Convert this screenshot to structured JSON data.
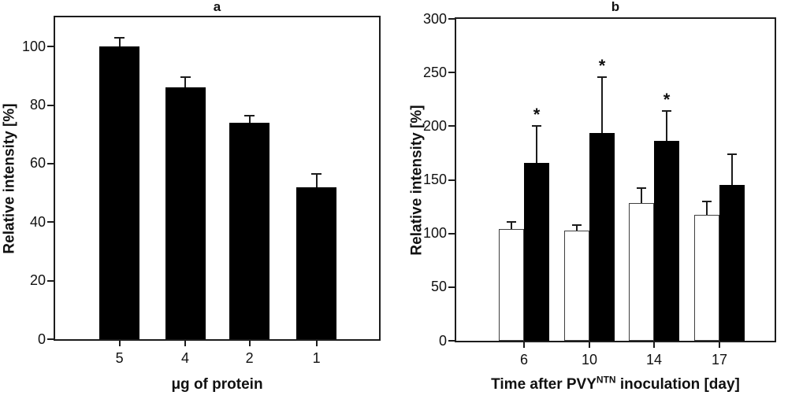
{
  "figure": {
    "background": "#ffffff",
    "axis_color": "#1c1c1c",
    "text_color": "#111111"
  },
  "chart_data": [
    {
      "id": "a",
      "type": "bar",
      "title": "a",
      "ylabel": "Relative intensity [%]",
      "xlabel": "μg of protein",
      "categories": [
        "5",
        "4",
        "2",
        "1"
      ],
      "yticks": [
        0,
        20,
        40,
        60,
        80,
        100
      ],
      "ylim": [
        0,
        110
      ],
      "grid": false,
      "legend": "none",
      "series": [
        {
          "name": "black-bars",
          "fill": "#000000",
          "values": [
            100,
            86,
            74,
            52
          ],
          "errors": [
            3,
            3.5,
            2.5,
            4.5
          ],
          "significance": [
            "",
            "",
            "",
            ""
          ]
        }
      ]
    },
    {
      "id": "b",
      "type": "bar",
      "title": "b",
      "ylabel": "Relative intensity [%]",
      "xlabel_parts": {
        "pre": "Time after PVY",
        "sup": "NTN",
        "post": " inoculation [day]"
      },
      "categories": [
        "6",
        "10",
        "14",
        "17"
      ],
      "yticks": [
        0,
        50,
        100,
        150,
        200,
        250,
        300
      ],
      "ylim": [
        0,
        300
      ],
      "grid": false,
      "legend": "none",
      "series": [
        {
          "name": "white-bars",
          "fill": "#ffffff",
          "values": [
            104,
            103,
            128,
            117
          ],
          "errors": [
            7,
            5,
            14,
            13
          ],
          "significance": [
            "",
            "",
            "",
            ""
          ]
        },
        {
          "name": "black-bars",
          "fill": "#000000",
          "values": [
            166,
            194,
            186,
            145
          ],
          "errors": [
            34,
            52,
            28,
            29
          ],
          "significance": [
            "*",
            "*",
            "*",
            ""
          ]
        }
      ]
    }
  ]
}
